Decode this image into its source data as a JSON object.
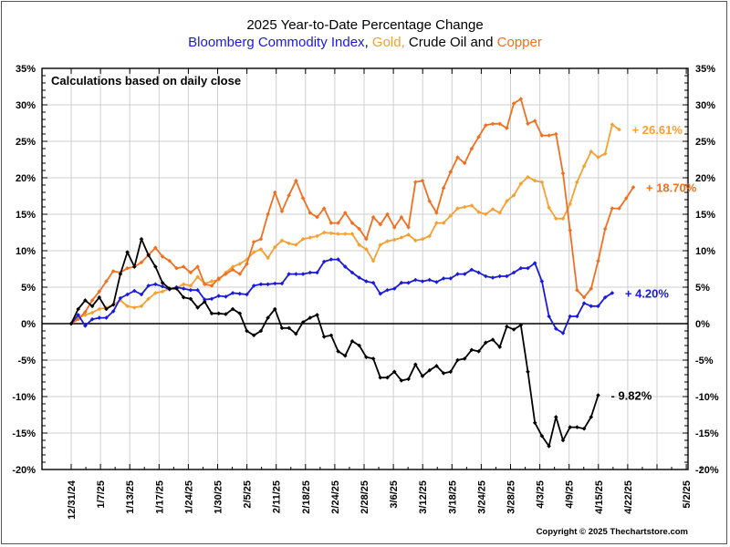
{
  "chart_data": {
    "type": "line",
    "title": "2025 Year-to-Date Percentage Change",
    "subtitle_parts": [
      {
        "text": "Bloomberg Commodity Index",
        "color": "#1a1adc"
      },
      {
        "text": ", ",
        "color": "#000000"
      },
      {
        "text": "Gold,",
        "color": "#f5a030"
      },
      {
        "text": " Crude Oil and ",
        "color": "#000000"
      },
      {
        "text": "Copper",
        "color": "#f07020"
      }
    ],
    "annotation": "Calculations based on daily close",
    "copyright": "Copyright © 2025 Thechartstore.com",
    "xlabel": "",
    "ylabel": "",
    "ylim": [
      -20,
      35
    ],
    "y_ticks": [
      -20,
      -15,
      -10,
      -5,
      0,
      5,
      10,
      15,
      20,
      25,
      30,
      35
    ],
    "y_tick_labels": [
      "-20%",
      "-15%",
      "-10%",
      "-5%",
      "0%",
      "5%",
      "10%",
      "15%",
      "20%",
      "25%",
      "30%",
      "35%"
    ],
    "x_tick_labels": [
      "12/31/24",
      "1/7/25",
      "1/13/25",
      "1/17/25",
      "1/24/25",
      "1/30/25",
      "2/5/25",
      "2/11/25",
      "2/18/25",
      "2/24/25",
      "2/28/25",
      "3/6/25",
      "3/12/25",
      "3/18/25",
      "3/24/25",
      "3/28/25",
      "4/3/25",
      "4/9/25",
      "4/15/25",
      "4/22/25",
      "",
      "5/2/25"
    ],
    "x_tick_trading_day_index": [
      0,
      4,
      8,
      12,
      16.6,
      20.8,
      25,
      29.2,
      33.4,
      37.6,
      41.8,
      46,
      50.2,
      54.4,
      58.6,
      62.8,
      67,
      71.2,
      75.4,
      79.6,
      83.8,
      88
    ],
    "grid": true,
    "zero_line": true,
    "series": [
      {
        "name": "Bloomberg Commodity Index",
        "color": "#1a1adc",
        "end_label": "+ 4.20%",
        "final_value": 4.2,
        "values": [
          0,
          1.2,
          -0.3,
          0.6,
          0.8,
          0.8,
          1.7,
          3.5,
          4.0,
          4.5,
          4.0,
          5.2,
          5.4,
          5.1,
          4.7,
          5.0,
          4.8,
          4.6,
          4.6,
          3.3,
          3.4,
          3.8,
          3.7,
          4.2,
          4.1,
          4.0,
          5.2,
          5.4,
          5.4,
          5.5,
          5.5,
          6.8,
          6.8,
          6.8,
          7.0,
          7.0,
          8.5,
          8.8,
          8.8,
          7.8,
          7.0,
          6.3,
          5.8,
          5.6,
          4.1,
          4.6,
          4.8,
          5.6,
          5.6,
          6.0,
          5.8,
          6.0,
          5.7,
          6.2,
          6.2,
          6.8,
          6.8,
          7.4,
          7.0,
          6.5,
          6.3,
          6.5,
          6.5,
          7.0,
          7.6,
          7.6,
          8.3,
          5.8,
          1.0,
          -0.7,
          -1.3,
          1.0,
          1.0,
          2.8,
          2.4,
          2.4,
          3.6,
          4.2
        ]
      },
      {
        "name": "Gold",
        "color": "#f5a030",
        "end_label": "+ 26.61%",
        "final_value": 26.61,
        "values": [
          0,
          0.8,
          1.2,
          1.5,
          2.0,
          2.2,
          2.6,
          3.2,
          2.4,
          2.2,
          2.4,
          3.4,
          4.2,
          4.4,
          4.8,
          4.9,
          5.4,
          5.2,
          6.4,
          5.5,
          5.8,
          6.0,
          7.0,
          7.8,
          8.2,
          8.8,
          9.8,
          10.2,
          9.0,
          10.5,
          11.4,
          11.0,
          10.8,
          11.6,
          11.8,
          12.0,
          12.5,
          12.4,
          12.3,
          12.3,
          12.3,
          10.8,
          10.2,
          8.6,
          10.8,
          11.3,
          11.5,
          11.8,
          12.2,
          11.4,
          11.6,
          12.0,
          13.8,
          13.8,
          14.8,
          15.8,
          16.0,
          16.2,
          15.3,
          15.0,
          15.7,
          15.2,
          16.8,
          17.6,
          19.2,
          20.1,
          19.6,
          19.4,
          15.9,
          14.4,
          14.4,
          16.4,
          19.4,
          21.6,
          23.6,
          22.8,
          23.3,
          27.3,
          26.61
        ]
      },
      {
        "name": "Crude Oil",
        "color": "#000000",
        "end_label": "- 9.82%",
        "final_value": -9.82,
        "values": [
          0,
          2.0,
          3.2,
          2.4,
          3.6,
          2.0,
          2.6,
          6.8,
          9.8,
          7.8,
          11.6,
          9.4,
          7.8,
          5.6,
          4.8,
          4.8,
          3.6,
          3.4,
          2.2,
          3.0,
          1.4,
          1.4,
          1.3,
          2.0,
          1.4,
          -1.0,
          -1.6,
          -1.0,
          0.8,
          2.0,
          -0.6,
          -0.6,
          -1.4,
          0.2,
          0.8,
          1.2,
          -1.8,
          -1.6,
          -3.8,
          -4.4,
          -2.4,
          -3.0,
          -4.6,
          -4.8,
          -7.4,
          -7.4,
          -6.6,
          -7.8,
          -7.6,
          -5.6,
          -7.2,
          -6.4,
          -5.8,
          -6.8,
          -6.6,
          -5.0,
          -4.8,
          -3.6,
          -3.8,
          -2.6,
          -2.2,
          -3.2,
          -0.4,
          -0.8,
          -0.2,
          -6.6,
          -13.6,
          -15.4,
          -16.8,
          -12.8,
          -16.0,
          -14.2,
          -14.2,
          -14.4,
          -12.8,
          -9.82
        ]
      },
      {
        "name": "Copper",
        "color": "#f07020",
        "end_label": "+ 18.70%",
        "final_value": 18.7,
        "values": [
          0,
          0.6,
          1.6,
          3.2,
          4.4,
          5.8,
          7.2,
          7.0,
          7.6,
          7.8,
          8.4,
          9.4,
          10.4,
          9.2,
          8.6,
          7.6,
          7.8,
          7.0,
          7.8,
          5.4,
          5.2,
          6.2,
          6.8,
          7.4,
          6.8,
          8.2,
          11.2,
          11.6,
          15.0,
          18.0,
          15.4,
          17.6,
          19.6,
          17.2,
          15.2,
          14.6,
          15.8,
          13.8,
          13.8,
          15.2,
          13.8,
          13.0,
          11.6,
          14.6,
          13.6,
          15.0,
          13.2,
          14.6,
          13.2,
          19.4,
          19.6,
          16.8,
          15.2,
          18.6,
          20.8,
          22.8,
          22.0,
          24.0,
          25.6,
          27.2,
          27.4,
          27.4,
          26.8,
          30.2,
          30.8,
          27.4,
          27.8,
          25.8,
          25.8,
          26.0,
          20.6,
          12.8,
          4.6,
          3.6,
          4.8,
          8.6,
          13.0,
          15.8,
          15.8,
          17.2,
          18.7
        ]
      }
    ]
  }
}
